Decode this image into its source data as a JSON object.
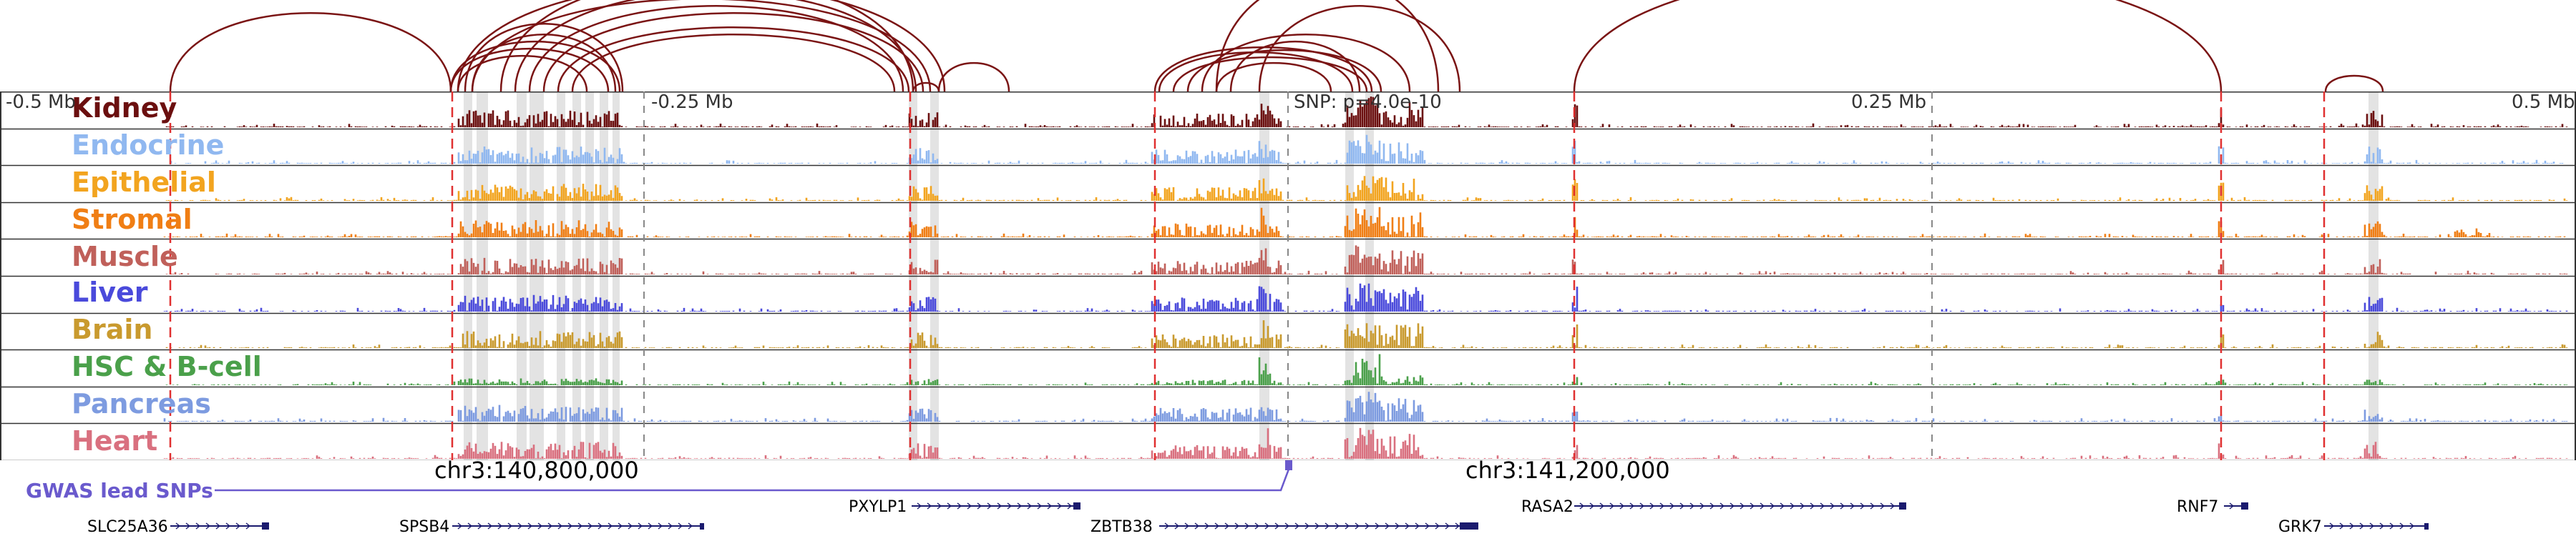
{
  "figure": {
    "scale_labels": [
      "-0.5 Mb",
      "-0.25 Mb",
      "0.25 Mb",
      "0.5 Mb"
    ],
    "snp_annotation": "SNP: p=4.0e-10",
    "coordinate_labels": [
      "chr3:140,800,000",
      "chr3:141,200,000"
    ],
    "gwas_label": "GWAS lead SNPs",
    "colors": {
      "arc": "#7a1414",
      "gwas": "#6a5acd",
      "gene": "#1a1a6e",
      "red_line": "#e03030",
      "gray_line": "#888888",
      "highlight": "#d9d9d9",
      "track_border": "#333333"
    }
  },
  "tracks": [
    {
      "label": "Kidney",
      "color": "#6b0f0f"
    },
    {
      "label": "Endocrine",
      "color": "#90b8f0"
    },
    {
      "label": "Epithelial",
      "color": "#f2a41f"
    },
    {
      "label": "Stromal",
      "color": "#f07e14"
    },
    {
      "label": "Muscle",
      "color": "#c0605a"
    },
    {
      "label": "Liver",
      "color": "#4a4adb"
    },
    {
      "label": "Brain",
      "color": "#c99a2e"
    },
    {
      "label": "HSC & B-cell",
      "color": "#4aa04a"
    },
    {
      "label": "Pancreas",
      "color": "#7d9be0"
    },
    {
      "label": "Heart",
      "color": "#d9707f"
    }
  ],
  "genes": [
    {
      "name": "SLC25A36"
    },
    {
      "name": "SPSB4"
    },
    {
      "name": "PXYLP1"
    },
    {
      "name": "ZBTB38"
    },
    {
      "name": "RASA2"
    },
    {
      "name": "RNF7"
    },
    {
      "name": "GRK7"
    }
  ]
}
